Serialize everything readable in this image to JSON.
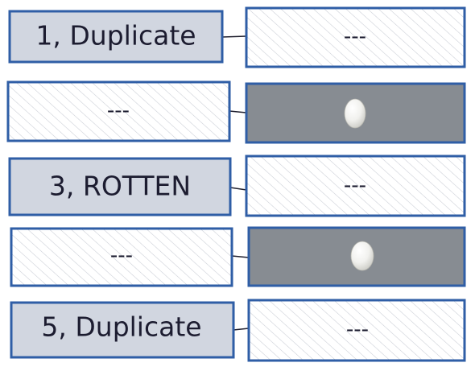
{
  "rows": [
    {
      "left": {
        "style": "label",
        "text": "1, Duplicate"
      },
      "right": {
        "style": "empty",
        "text": "---"
      }
    },
    {
      "left": {
        "style": "empty",
        "text": "---"
      },
      "right": {
        "style": "egg",
        "icon": "egg-icon"
      }
    },
    {
      "left": {
        "style": "label",
        "text": "3, ROTTEN"
      },
      "right": {
        "style": "empty",
        "text": "---"
      }
    },
    {
      "left": {
        "style": "empty",
        "text": "---"
      },
      "right": {
        "style": "egg",
        "icon": "egg-icon"
      }
    },
    {
      "left": {
        "style": "label",
        "text": "5, Duplicate"
      },
      "right": {
        "style": "empty",
        "text": "---"
      }
    }
  ],
  "colors": {
    "border": "#2f5ea6",
    "label_fill": "#d1d6e0",
    "egg_cell_fill": "#878c92",
    "hatch": "#c8ccd4",
    "connector": "#1f1f2e"
  }
}
